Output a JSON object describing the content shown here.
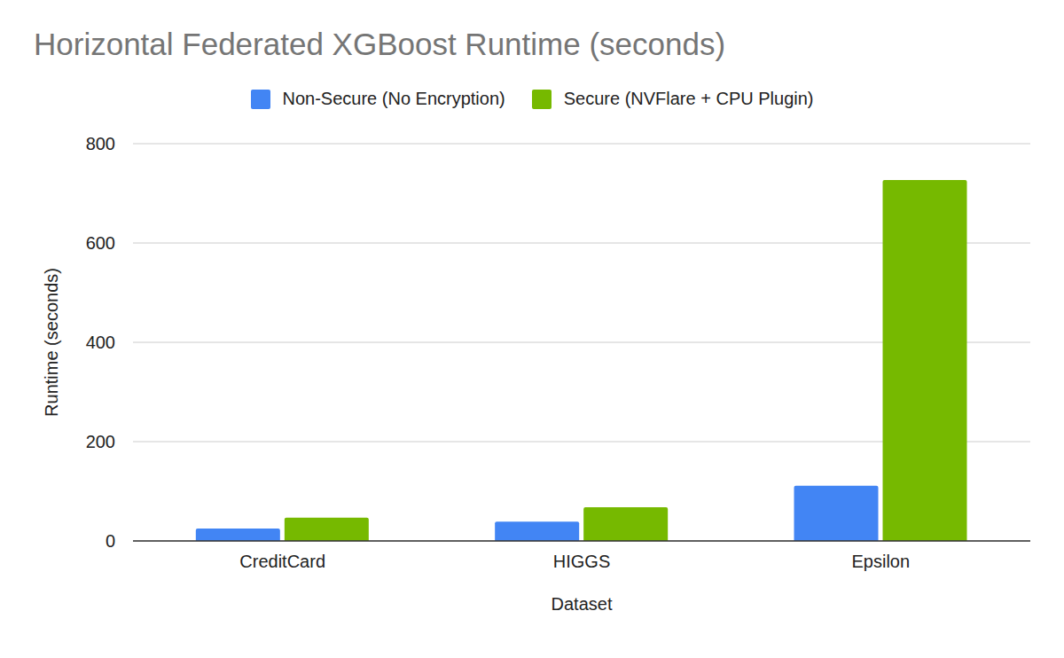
{
  "chart_data": {
    "type": "bar",
    "title": "Horizontal Federated XGBoost Runtime (seconds)",
    "x_label": "Dataset",
    "y_label": "Runtime (seconds)",
    "categories": [
      "CreditCard",
      "HIGGS",
      "Epsilon"
    ],
    "series": [
      {
        "name": "Non-Secure (No Encryption)",
        "color": "#4285f4",
        "values": [
          25,
          39,
          111
        ]
      },
      {
        "name": "Secure (NVFlare + CPU Plugin)",
        "color": "#76b900",
        "values": [
          47,
          68,
          727
        ]
      }
    ],
    "ylim": [
      0,
      800
    ],
    "yticks": [
      0,
      200,
      400,
      600,
      800
    ],
    "grid": true,
    "legend": "top"
  }
}
